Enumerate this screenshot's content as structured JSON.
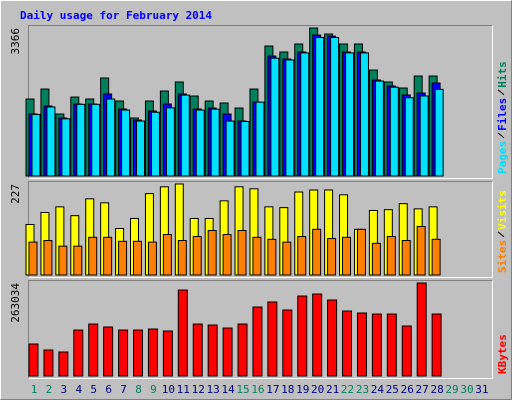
{
  "chart_data": [
    {
      "type": "bar",
      "title": "Daily usage for February 2014",
      "ylim": [
        0,
        3366
      ],
      "yticks": [
        3366
      ],
      "series": [
        {
          "name": "Hits",
          "color": "#00805c",
          "values": [
            1751,
            1978,
            1410,
            1796,
            1751,
            2229,
            1706,
            1319,
            1706,
            1933,
            2138,
            1819,
            1706,
            1660,
            1546,
            1978,
            2956,
            2820,
            3002,
            3366,
            3229,
            3002,
            3002,
            2410,
            2138,
            2001,
            2274,
            2274,
            null,
            null,
            null
          ]
        },
        {
          "name": "Files",
          "color": "#0000ff",
          "values": [
            1410,
            1592,
            1319,
            1637,
            1637,
            1865,
            1524,
            1273,
            1478,
            1637,
            1865,
            1524,
            1546,
            1410,
            1251,
            1683,
            2729,
            2661,
            2820,
            3206,
            3180,
            2820,
            2820,
            2183,
            2047,
            1842,
            1887,
            2115,
            null,
            null,
            null
          ]
        },
        {
          "name": "Pages",
          "color": "#00e0ff",
          "values": [
            1400,
            1570,
            1300,
            1630,
            1630,
            1750,
            1500,
            1250,
            1450,
            1550,
            1840,
            1500,
            1520,
            1250,
            1240,
            1680,
            2680,
            2640,
            2800,
            3150,
            3150,
            2800,
            2800,
            2160,
            2020,
            1780,
            1820,
            1970,
            null,
            null,
            null
          ]
        }
      ]
    },
    {
      "type": "bar",
      "ylim": [
        0,
        227
      ],
      "yticks": [
        227
      ],
      "series": [
        {
          "name": "Visits",
          "color": "#ffff00",
          "values": [
            126,
            156,
            170,
            148,
            190,
            180,
            116,
            141,
            203,
            220,
            227,
            141,
            141,
            185,
            220,
            215,
            170,
            168,
            207,
            212,
            212,
            200,
            114,
            161,
            163,
            178,
            165,
            170,
            null,
            null,
            null
          ]
        },
        {
          "name": "Sites",
          "color": "#ff8000",
          "values": [
            82,
            86,
            72,
            72,
            94,
            94,
            84,
            84,
            82,
            101,
            86,
            96,
            111,
            101,
            111,
            94,
            89,
            82,
            96,
            114,
            91,
            94,
            114,
            79,
            96,
            86,
            121,
            89,
            null,
            null,
            null
          ]
        }
      ]
    },
    {
      "type": "bar",
      "ylim": [
        0,
        263034
      ],
      "yticks": [
        263034
      ],
      "categories": [
        "1",
        "2",
        "3",
        "4",
        "5",
        "6",
        "7",
        "8",
        "9",
        "10",
        "11",
        "12",
        "13",
        "14",
        "15",
        "16",
        "17",
        "18",
        "19",
        "20",
        "21",
        "22",
        "23",
        "24",
        "25",
        "26",
        "27",
        "28",
        "29",
        "30",
        "31"
      ],
      "category_colors": [
        "#00805c",
        "#00805c",
        "#000080",
        "#000080",
        "#000080",
        "#000080",
        "#000080",
        "#00805c",
        "#00805c",
        "#000080",
        "#000080",
        "#000080",
        "#000080",
        "#000080",
        "#00805c",
        "#00805c",
        "#000080",
        "#000080",
        "#000080",
        "#000080",
        "#000080",
        "#00805c",
        "#00805c",
        "#000080",
        "#000080",
        "#000080",
        "#000080",
        "#000080",
        "#00805c",
        "#00805c",
        "#000080"
      ],
      "series": [
        {
          "name": "KBytes",
          "color": "#ff0000",
          "values": [
            90500,
            73500,
            67900,
            130000,
            147000,
            138600,
            130000,
            130000,
            132900,
            127300,
            243200,
            147000,
            144200,
            135700,
            147000,
            195100,
            209300,
            186600,
            226200,
            231900,
            214900,
            183800,
            178200,
            175300,
            175300,
            141400,
            263034,
            175300,
            null,
            null,
            null
          ]
        }
      ]
    }
  ]
}
